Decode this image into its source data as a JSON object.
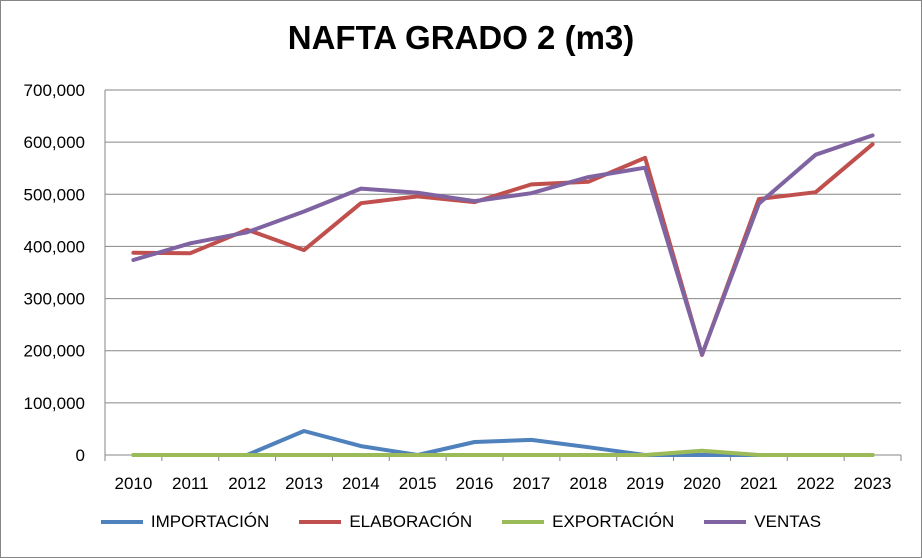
{
  "chart_data": {
    "type": "line",
    "title": "NAFTA GRADO 2 (m3)",
    "xlabel": "",
    "ylabel": "",
    "categories": [
      "2010",
      "2011",
      "2012",
      "2013",
      "2014",
      "2015",
      "2016",
      "2017",
      "2018",
      "2019",
      "2020",
      "2021",
      "2022",
      "2023"
    ],
    "ylim": [
      0,
      700000
    ],
    "yticks": [
      0,
      100000,
      200000,
      300000,
      400000,
      500000,
      600000,
      700000
    ],
    "ytick_labels": [
      "0",
      "100,000",
      "200,000",
      "300,000",
      "400,000",
      "500,000",
      "600,000",
      "700,000"
    ],
    "grid": true,
    "legend_position": "bottom",
    "series": [
      {
        "name": "IMPORTACIÓN",
        "color": "#4F81BD",
        "values": [
          0,
          0,
          0,
          46000,
          17000,
          0,
          25000,
          29000,
          15000,
          0,
          0,
          0,
          0,
          0
        ]
      },
      {
        "name": "ELABORACIÓN",
        "color": "#C0504D",
        "values": [
          388000,
          387000,
          432000,
          393000,
          483000,
          496000,
          485000,
          519000,
          524000,
          570000,
          192000,
          491000,
          504000,
          596000
        ]
      },
      {
        "name": "EXPORTACIÓN",
        "color": "#9BBB59",
        "values": [
          0,
          0,
          0,
          0,
          0,
          0,
          0,
          0,
          0,
          0,
          8000,
          0,
          0,
          0
        ]
      },
      {
        "name": "VENTAS",
        "color": "#8064A2",
        "values": [
          374000,
          406000,
          427000,
          467000,
          511000,
          503000,
          487000,
          502000,
          533000,
          551000,
          193000,
          482000,
          576000,
          613000
        ]
      }
    ]
  }
}
